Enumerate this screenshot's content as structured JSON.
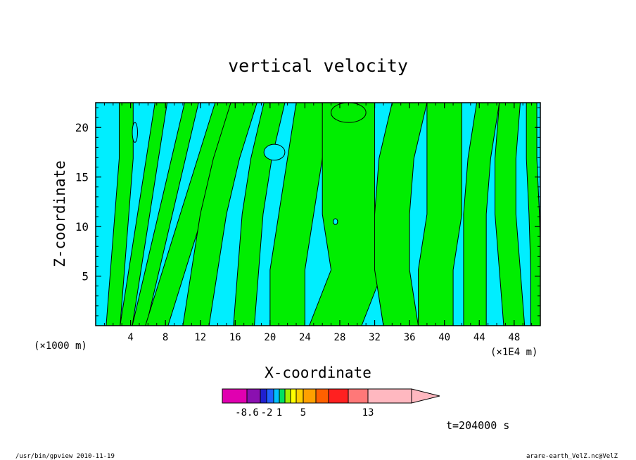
{
  "chart_data": {
    "type": "heatmap",
    "title": "vertical velocity",
    "xlabel": "X-coordinate",
    "ylabel": "Z-coordinate",
    "x_unit_left": "(×1000 m)",
    "x_unit_right": "(×1E4 m)",
    "x_ticks": [
      4,
      8,
      12,
      16,
      20,
      24,
      28,
      32,
      36,
      40,
      44,
      48
    ],
    "y_ticks": [
      5,
      10,
      15,
      20
    ],
    "xlim": [
      0,
      51
    ],
    "ylim": [
      0,
      22.5
    ],
    "time_label": "t=204000 s",
    "colorbar": {
      "tick_labels": [
        "-8.6",
        "-2",
        "1",
        "5",
        "13"
      ],
      "tick_values": [
        -8.6,
        -2,
        1,
        5,
        13
      ],
      "colors": [
        "#e000b0",
        "#8a10b0",
        "#2020d0",
        "#2060ff",
        "#00c0ff",
        "#00e060",
        "#a0f000",
        "#ffff00",
        "#ffd000",
        "#ffa000",
        "#ff6000",
        "#ff2020",
        "#ff7878",
        "#ffb8c0"
      ]
    },
    "fill_colors": {
      "negative": "#00eeff",
      "positive": "#00ee00"
    },
    "bands": [
      {
        "sign": "pos",
        "cx": [
          2,
          2.5,
          3,
          3.5,
          3.5
        ],
        "w": 0.8
      },
      {
        "sign": "pos",
        "cx": [
          3.5,
          4.5,
          5.5,
          6.5,
          7.5
        ],
        "w": 0.7
      },
      {
        "sign": "pos",
        "cx": [
          5,
          6.5,
          8,
          9.5,
          11
        ],
        "w": 0.8
      },
      {
        "sign": "pos",
        "cx": [
          7,
          9,
          11,
          13,
          15
        ],
        "w": 1.3
      },
      {
        "sign": "pos",
        "cx": [
          11.5,
          12.5,
          13.5,
          15,
          17
        ],
        "w": 1.5
      },
      {
        "sign": "pos",
        "cx": [
          17,
          17.5,
          18,
          19,
          20.5
        ],
        "w": 1.2
      },
      {
        "sign": "pos",
        "cx": [
          22,
          22,
          23,
          24,
          25
        ],
        "w": 2.0
      },
      {
        "sign": "pos",
        "cx": [
          27.5,
          30,
          29,
          29,
          29
        ],
        "w": 3.0
      },
      {
        "sign": "pos",
        "cx": [
          35,
          34,
          34,
          34.5,
          36
        ],
        "w": 2.0
      },
      {
        "sign": "pos",
        "cx": [
          39,
          39,
          40,
          40,
          40
        ],
        "w": 2.0
      },
      {
        "sign": "pos",
        "cx": [
          43.5,
          43.5,
          43.5,
          44,
          45
        ],
        "w": 1.3
      },
      {
        "sign": "pos",
        "cx": [
          48,
          47.5,
          47,
          47,
          47.5
        ],
        "w": 1.2
      },
      {
        "sign": "pos",
        "cx": [
          50.5,
          50.5,
          50.3,
          50,
          50
        ],
        "w": 0.6
      }
    ],
    "blobs": [
      {
        "sign": "neg",
        "x": 20.5,
        "y": 17.5,
        "rx": 1.2,
        "ry": 0.8
      },
      {
        "sign": "neg",
        "x": 27.5,
        "y": 10.5,
        "rx": 0.25,
        "ry": 0.3
      },
      {
        "sign": "neg",
        "x": 4.5,
        "y": 19.5,
        "rx": 0.3,
        "ry": 1.0
      },
      {
        "sign": "pos",
        "x": 29,
        "y": 21.5,
        "rx": 2.0,
        "ry": 1.0
      }
    ]
  },
  "footer": {
    "left": "/usr/bin/gpview  2010-11-19",
    "right": "arare-earth_VelZ.nc@VelZ"
  }
}
